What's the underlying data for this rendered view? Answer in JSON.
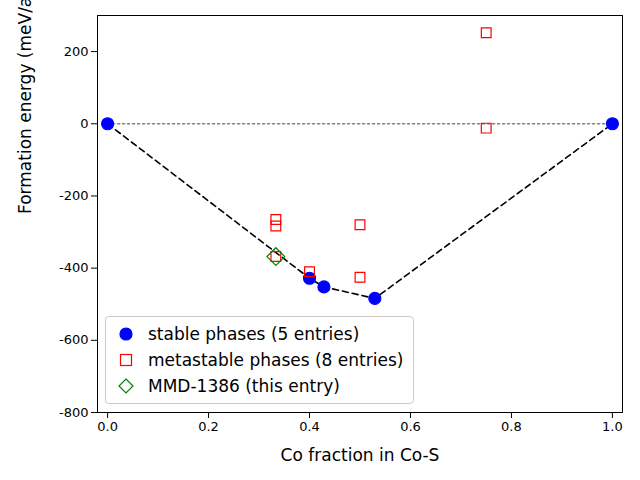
{
  "chart_data": {
    "type": "scatter",
    "xlabel": "Co fraction in Co-S",
    "ylabel": "Formation energy (meV/atom)",
    "xlim": [
      -0.02,
      1.02
    ],
    "ylim": [
      -800,
      300
    ],
    "xticks": [
      {
        "value": 0,
        "label": "0.0"
      },
      {
        "value": 0.2,
        "label": "0.2"
      },
      {
        "value": 0.4,
        "label": "0.4"
      },
      {
        "value": 0.6,
        "label": "0.6"
      },
      {
        "value": 0.8,
        "label": "0.8"
      },
      {
        "value": 1,
        "label": "1.0"
      }
    ],
    "yticks": [
      -800,
      -600,
      -400,
      -200,
      0,
      200
    ],
    "grid": false,
    "legend": "lower left",
    "series": [
      {
        "name": "stable phases (5 entries)",
        "color": "blue",
        "marker": "circle",
        "x": [
          0,
          0.4,
          0.4286,
          0.5294,
          1
        ],
        "values": [
          0,
          -428,
          -452,
          -484,
          0
        ]
      },
      {
        "name": "metastable phases (8 entries)",
        "color": "red",
        "marker": "square-open",
        "x": [
          0.3333,
          0.3333,
          0.3333,
          0.4,
          0.5,
          0.5,
          0.75,
          0.75
        ],
        "values": [
          -265,
          -283,
          -368,
          -410,
          -280,
          -425,
          252,
          -12
        ]
      },
      {
        "name": "MMD-1386 (this entry)",
        "color": "green",
        "marker": "diamond-open",
        "x": [
          0.3333
        ],
        "values": [
          -368
        ]
      }
    ],
    "hull": {
      "x": [
        0,
        0.4,
        0.4286,
        0.5294,
        1
      ],
      "values": [
        0,
        -428,
        -452,
        -484,
        0
      ],
      "color": "black",
      "line_style": "dashed"
    },
    "zero_line": {
      "x": [
        0,
        1
      ],
      "values": [
        0,
        0
      ],
      "color": "gray",
      "line_style": "dotted"
    }
  }
}
